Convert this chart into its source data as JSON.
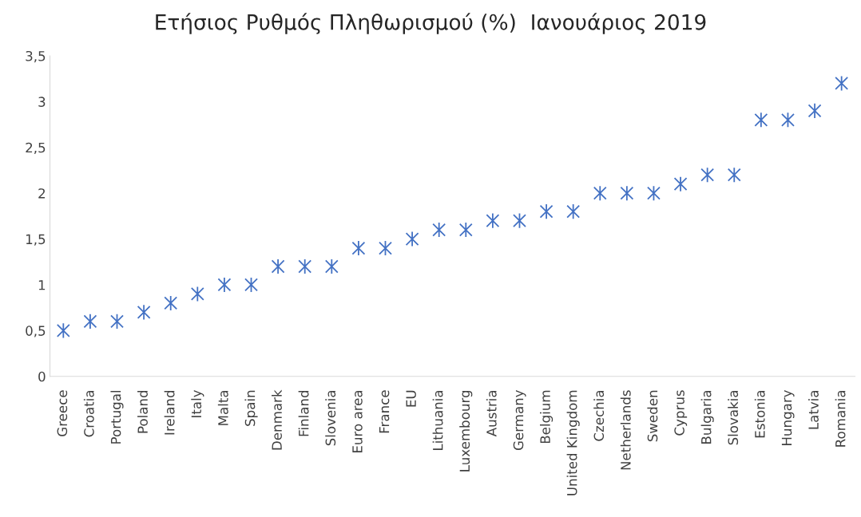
{
  "chart_data": {
    "type": "scatter",
    "title": "Ετήσιος Ρυθμός Πληθωρισμού (%)  Ιανουάριος 2019",
    "categories": [
      "Greece",
      "Croatia",
      "Portugal",
      "Poland",
      "Ireland",
      "Italy",
      "Malta",
      "Spain",
      "Denmark",
      "Finland",
      "Slovenia",
      "Euro area",
      "France",
      "EU",
      "Lithuania",
      "Luxembourg",
      "Austria",
      "Germany",
      "Belgium",
      "United Kingdom",
      "Czechia",
      "Netherlands",
      "Sweden",
      "Cyprus",
      "Bulgaria",
      "Slovakia",
      "Estonia",
      "Hungary",
      "Latvia",
      "Romania"
    ],
    "values": [
      0.5,
      0.6,
      0.6,
      0.7,
      0.8,
      0.9,
      1.0,
      1.0,
      1.2,
      1.2,
      1.2,
      1.4,
      1.4,
      1.5,
      1.6,
      1.6,
      1.7,
      1.7,
      1.8,
      1.8,
      2.0,
      2.0,
      2.0,
      2.1,
      2.2,
      2.2,
      2.8,
      2.8,
      2.9,
      3.2
    ],
    "color": "#4472c4",
    "marker": "cross",
    "grid": false,
    "legend": false,
    "ylim": [
      0,
      3.5
    ],
    "yticks": [
      0,
      {
        "value": 0.5,
        "label": "0,5"
      },
      1,
      {
        "value": 1.5,
        "label": "1,5"
      },
      2,
      {
        "value": 2.5,
        "label": "2,5"
      },
      3,
      {
        "value": 3.5,
        "label": "3,5"
      }
    ]
  }
}
